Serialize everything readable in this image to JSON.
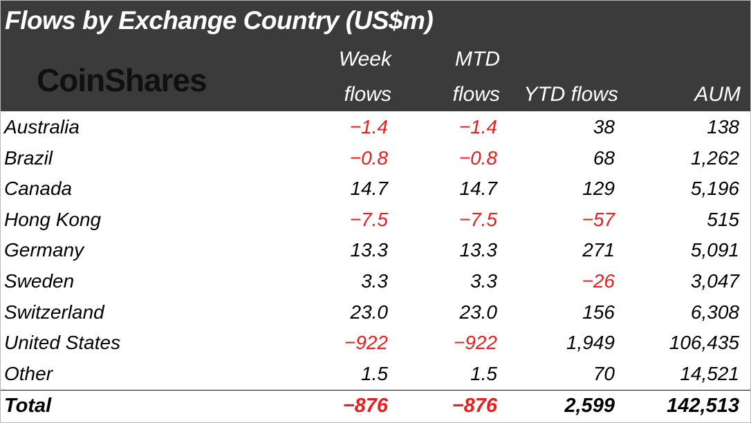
{
  "title": "Flows by Exchange Country (US$m)",
  "logo_text": "CoinShares",
  "columns": {
    "week": [
      "Week",
      "flows"
    ],
    "mtd": [
      "MTD",
      "flows"
    ],
    "ytd": "YTD flows",
    "aum": "AUM"
  },
  "rows": [
    {
      "country": "Australia",
      "week": "-1.4",
      "mtd": "-1.4",
      "ytd": "38",
      "aum": "138"
    },
    {
      "country": "Brazil",
      "week": "-0.8",
      "mtd": "-0.8",
      "ytd": "68",
      "aum": "1,262"
    },
    {
      "country": "Canada",
      "week": "14.7",
      "mtd": "14.7",
      "ytd": "129",
      "aum": "5,196"
    },
    {
      "country": "Hong Kong",
      "week": "-7.5",
      "mtd": "-7.5",
      "ytd": "-57",
      "aum": "515"
    },
    {
      "country": "Germany",
      "week": "13.3",
      "mtd": "13.3",
      "ytd": "271",
      "aum": "5,091"
    },
    {
      "country": "Sweden",
      "week": "3.3",
      "mtd": "3.3",
      "ytd": "-26",
      "aum": "3,047"
    },
    {
      "country": "Switzerland",
      "week": "23.0",
      "mtd": "23.0",
      "ytd": "156",
      "aum": "6,308"
    },
    {
      "country": "United States",
      "week": "-922",
      "mtd": "-922",
      "ytd": "1,949",
      "aum": "106,435"
    },
    {
      "country": "Other",
      "week": "1.5",
      "mtd": "1.5",
      "ytd": "70",
      "aum": "14,521"
    }
  ],
  "total": {
    "label": "Total",
    "week": "-876",
    "mtd": "-876",
    "ytd": "2,599",
    "aum": "142,513"
  },
  "colors": {
    "header_bg": "#3b3b3b",
    "header_text": "#ffffff",
    "negative": "#ee1c1c",
    "positive": "#000000"
  }
}
